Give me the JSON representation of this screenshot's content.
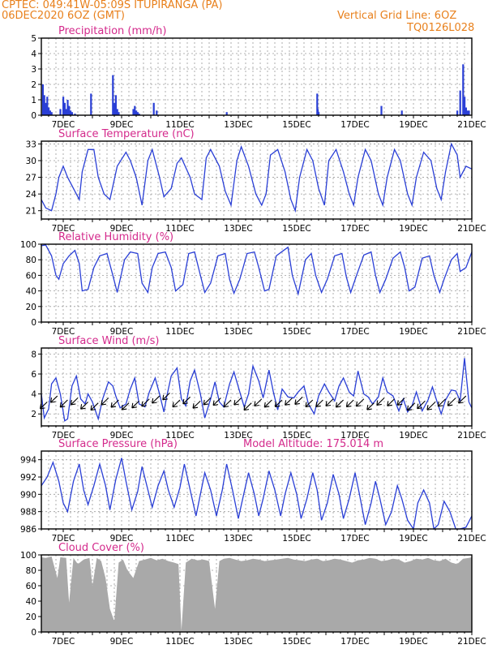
{
  "header": {
    "left_line1": "CPTEC:   049:41W-05:09S   ITUPIRANGA (PA)",
    "left_line2": "06DEC2020 6OZ (GMT)",
    "right_line1": "Vertical Grid Line: 6OZ",
    "right_line2": "TQ0126L028"
  },
  "colors": {
    "header_text": "#e8801c",
    "panel_title": "#d42a8c",
    "series_line": "#2a3fd6",
    "bar_fill": "#2a3fd6",
    "cloud_fill": "#a9a9a9",
    "wind_arrow": "#000000"
  },
  "chart_data": [
    {
      "type": "bar",
      "title": "Precipitation (mm/h)",
      "ylim": [
        0,
        5
      ],
      "yticks": [
        0,
        1,
        2,
        3,
        4,
        5
      ],
      "xlim": [
        6.25,
        21
      ],
      "xticks": [
        7,
        9,
        11,
        13,
        15,
        17,
        19,
        21
      ],
      "xtick_labels": [
        "7DEC",
        "9DEC",
        "11DEC",
        "13DEC",
        "15DEC",
        "17DEC",
        "19DEC",
        "21DEC"
      ],
      "x": [
        6.3,
        6.35,
        6.4,
        6.45,
        6.5,
        6.55,
        6.6,
        6.9,
        7.0,
        7.05,
        7.1,
        7.15,
        7.2,
        7.25,
        7.3,
        7.4,
        7.95,
        8.7,
        8.75,
        8.8,
        8.85,
        8.9,
        9.4,
        9.45,
        9.5,
        9.55,
        9.6,
        10.1,
        10.2,
        12.6,
        15.7,
        15.72,
        15.75,
        17.9,
        18.6,
        20.5,
        20.6,
        20.7,
        20.75,
        20.8,
        20.85,
        20.9
      ],
      "values": [
        2.0,
        1.3,
        0.8,
        1.2,
        0.5,
        0.3,
        0.2,
        0.4,
        1.2,
        0.8,
        0.4,
        1.0,
        0.6,
        0.3,
        0.2,
        0.1,
        1.4,
        2.6,
        0.8,
        1.3,
        0.4,
        0.2,
        0.4,
        0.6,
        0.3,
        0.2,
        0.1,
        0.8,
        0.3,
        0.2,
        1.4,
        0.4,
        0.2,
        0.6,
        0.3,
        0.3,
        1.6,
        3.3,
        1.2,
        0.5,
        0.3,
        0.3
      ]
    },
    {
      "type": "line",
      "title": "Surface Temperature (nC)",
      "ylim": [
        19.5,
        33.5
      ],
      "yticks": [
        21,
        24,
        27,
        30,
        33
      ],
      "xlim": [
        6.25,
        21
      ],
      "xticks": [
        7,
        9,
        11,
        13,
        15,
        17,
        19,
        21
      ],
      "xtick_labels": [
        "7DEC",
        "9DEC",
        "11DEC",
        "13DEC",
        "15DEC",
        "17DEC",
        "19DEC",
        "21DEC"
      ],
      "x": [
        6.25,
        6.4,
        6.6,
        6.75,
        6.85,
        7.0,
        7.15,
        7.35,
        7.55,
        7.65,
        7.85,
        8.05,
        8.2,
        8.4,
        8.6,
        8.85,
        9.15,
        9.3,
        9.5,
        9.7,
        9.9,
        10.05,
        10.3,
        10.45,
        10.7,
        10.9,
        11.05,
        11.35,
        11.5,
        11.75,
        11.9,
        12.05,
        12.35,
        12.55,
        12.75,
        12.95,
        13.1,
        13.35,
        13.6,
        13.8,
        13.95,
        14.1,
        14.35,
        14.6,
        14.8,
        14.95,
        15.1,
        15.35,
        15.55,
        15.75,
        15.95,
        16.1,
        16.35,
        16.6,
        16.8,
        16.95,
        17.1,
        17.35,
        17.55,
        17.8,
        17.95,
        18.1,
        18.35,
        18.55,
        18.8,
        18.95,
        19.1,
        19.35,
        19.6,
        19.8,
        19.95,
        20.1,
        20.3,
        20.5,
        20.6,
        20.8,
        21.0
      ],
      "values": [
        23,
        21.5,
        21,
        24,
        27,
        29,
        27,
        25,
        23,
        28,
        32,
        32,
        27,
        24,
        23,
        29,
        31.5,
        30,
        27,
        22,
        30,
        32,
        27,
        23.5,
        25,
        29.5,
        30.5,
        27,
        24,
        23,
        30.5,
        32,
        29,
        24.5,
        22,
        30,
        32.5,
        29,
        24,
        22,
        24,
        31,
        32,
        28,
        23,
        21,
        27,
        32,
        30,
        25,
        22,
        30,
        32,
        28,
        24,
        22,
        27,
        32,
        30,
        24,
        22,
        27,
        32,
        30,
        24,
        22,
        27,
        31.5,
        30,
        25,
        23,
        28,
        33,
        31,
        27,
        29,
        28.5
      ]
    },
    {
      "type": "line",
      "title": "Relative Humidity (%)",
      "ylim": [
        0,
        100
      ],
      "yticks": [
        0,
        20,
        40,
        60,
        80,
        100
      ],
      "xlim": [
        6.25,
        21
      ],
      "xticks": [
        7,
        9,
        11,
        13,
        15,
        17,
        19,
        21
      ],
      "xtick_labels": [
        "7DEC",
        "9DEC",
        "11DEC",
        "13DEC",
        "15DEC",
        "17DEC",
        "19DEC",
        "21DEC"
      ],
      "x": [
        6.25,
        6.4,
        6.6,
        6.75,
        6.85,
        7.0,
        7.2,
        7.4,
        7.55,
        7.65,
        7.85,
        8.05,
        8.25,
        8.5,
        8.7,
        8.85,
        9.1,
        9.3,
        9.55,
        9.7,
        9.9,
        10.05,
        10.25,
        10.5,
        10.7,
        10.85,
        11.1,
        11.3,
        11.5,
        11.7,
        11.85,
        12.05,
        12.3,
        12.55,
        12.7,
        12.85,
        13.05,
        13.3,
        13.55,
        13.7,
        13.9,
        14.05,
        14.3,
        14.55,
        14.7,
        14.85,
        15.05,
        15.3,
        15.5,
        15.65,
        15.85,
        16.05,
        16.3,
        16.55,
        16.7,
        16.85,
        17.05,
        17.3,
        17.55,
        17.7,
        17.85,
        18.05,
        18.3,
        18.55,
        18.7,
        18.85,
        19.05,
        19.3,
        19.55,
        19.7,
        19.9,
        20.05,
        20.3,
        20.5,
        20.6,
        20.8,
        21.0
      ],
      "values": [
        98,
        99,
        85,
        60,
        55,
        75,
        85,
        92,
        75,
        40,
        42,
        70,
        85,
        88,
        60,
        38,
        80,
        90,
        88,
        50,
        38,
        70,
        88,
        90,
        70,
        40,
        48,
        88,
        90,
        60,
        38,
        50,
        85,
        88,
        55,
        37,
        55,
        88,
        90,
        70,
        40,
        42,
        85,
        92,
        96,
        60,
        36,
        80,
        88,
        60,
        38,
        55,
        85,
        88,
        58,
        38,
        60,
        86,
        90,
        60,
        38,
        55,
        82,
        90,
        70,
        40,
        45,
        82,
        85,
        60,
        38,
        55,
        80,
        88,
        65,
        70,
        90
      ]
    },
    {
      "type": "line",
      "title": "Surface Wind (m/s)",
      "ylim": [
        0.8,
        8.6
      ],
      "yticks": [
        2,
        4,
        6,
        8
      ],
      "xlim": [
        6.25,
        21
      ],
      "xticks": [
        7,
        9,
        11,
        13,
        15,
        17,
        19,
        21
      ],
      "xtick_labels": [
        "7DEC",
        "9DEC",
        "11DEC",
        "13DEC",
        "15DEC",
        "17DEC",
        "19DEC",
        "21DEC"
      ],
      "x": [
        6.25,
        6.35,
        6.5,
        6.6,
        6.75,
        6.9,
        7.05,
        7.15,
        7.3,
        7.45,
        7.6,
        7.75,
        7.85,
        8.0,
        8.2,
        8.35,
        8.55,
        8.7,
        8.8,
        8.95,
        9.15,
        9.3,
        9.45,
        9.6,
        9.8,
        9.95,
        10.15,
        10.3,
        10.45,
        10.55,
        10.7,
        10.9,
        11.05,
        11.2,
        11.35,
        11.5,
        11.7,
        11.85,
        12.05,
        12.2,
        12.35,
        12.5,
        12.7,
        12.85,
        13.05,
        13.2,
        13.35,
        13.5,
        13.7,
        13.85,
        14.05,
        14.2,
        14.35,
        14.5,
        14.7,
        14.9,
        15.05,
        15.25,
        15.4,
        15.6,
        15.75,
        15.95,
        16.1,
        16.3,
        16.45,
        16.6,
        16.8,
        16.95,
        17.1,
        17.3,
        17.45,
        17.6,
        17.8,
        17.95,
        18.1,
        18.3,
        18.5,
        18.65,
        18.8,
        18.95,
        19.1,
        19.3,
        19.5,
        19.65,
        19.8,
        19.95,
        20.1,
        20.3,
        20.45,
        20.6,
        20.75,
        20.9,
        21.0
      ],
      "values": [
        4,
        1.6,
        2.5,
        5,
        5.6,
        4,
        1.3,
        1.5,
        4.8,
        5.8,
        3.5,
        3,
        4,
        3.2,
        1.5,
        3.5,
        5.2,
        4.8,
        3.8,
        2.6,
        3,
        4.5,
        5.6,
        3,
        2.7,
        4.2,
        5.6,
        4,
        2.2,
        3.8,
        5.8,
        6.6,
        3.5,
        2.8,
        5.3,
        6.4,
        4,
        1.6,
        3.5,
        5.2,
        3.2,
        2.7,
        5,
        6.2,
        4.2,
        2.7,
        4,
        6.8,
        5.3,
        3.6,
        6.4,
        4.2,
        2.4,
        4.5,
        3.7,
        3.6,
        4.2,
        4.8,
        3,
        2,
        3.8,
        5,
        4.2,
        3.3,
        4.8,
        5.6,
        4.2,
        3.8,
        6.3,
        4,
        3.7,
        3,
        3.7,
        5.6,
        4.2,
        3.8,
        2.3,
        3.5,
        2.2,
        2.8,
        4.2,
        2.3,
        3.4,
        4.7,
        3.3,
        2,
        3.4,
        4.4,
        4.3,
        3.3,
        7.6,
        3.2,
        2.6
      ],
      "arrows_x": [
        6.45,
        6.8,
        7.15,
        7.5,
        7.85,
        8.2,
        8.55,
        8.9,
        9.25,
        9.6,
        9.95,
        10.3,
        10.65,
        11.0,
        11.35,
        11.7,
        12.05,
        12.4,
        12.75,
        13.1,
        13.45,
        13.8,
        14.15,
        14.5,
        14.85,
        15.2,
        15.55,
        15.9,
        16.25,
        16.6,
        16.95,
        17.3,
        17.65,
        18.0,
        18.35,
        18.7,
        19.05,
        19.4,
        19.75,
        20.1,
        20.45,
        20.8
      ],
      "arrows_y": [
        3.2,
        3.8,
        3.4,
        3.6,
        3.2,
        3.1,
        3.6,
        3.4,
        3.1,
        3.3,
        3.5,
        3.8,
        4.1,
        3.4,
        3.7,
        3.3,
        3.6,
        3.6,
        3.4,
        3.6,
        3.1,
        3.5,
        3.4,
        3.4,
        3.6,
        3.7,
        3.4,
        3.4,
        3.5,
        3.4,
        3.4,
        3.5,
        3.1,
        3.6,
        3.5,
        3.6,
        3.1,
        3.3,
        3.2,
        3.5,
        3.6,
        3.8
      ],
      "arrows_speed": [
        3.2,
        3.0,
        3.5,
        3.2,
        3.4,
        3.5,
        3.3,
        3.6,
        3.2,
        3.3,
        3.6,
        3.5,
        3.2,
        3.4,
        3.3,
        3.5,
        3.2,
        3.6,
        3.4,
        3.3,
        3.5,
        3.4,
        3.5,
        3.2,
        3.4,
        3.6,
        3.3,
        3.2,
        3.4,
        3.5,
        3.3,
        3.6,
        3.2,
        3.5,
        3.3,
        3.4,
        3.6,
        3.8,
        4.0,
        3.6,
        3.9,
        3.5
      ]
    },
    {
      "type": "line",
      "title": "Surface Pressure (hPa)",
      "annotation": "Model Altitude: 175.014 m",
      "ylim": [
        986,
        995
      ],
      "yticks": [
        986,
        988,
        990,
        992,
        994
      ],
      "xlim": [
        6.25,
        21
      ],
      "xticks": [
        7,
        9,
        11,
        13,
        15,
        17,
        19,
        21
      ],
      "xtick_labels": [
        "7DEC",
        "9DEC",
        "11DEC",
        "13DEC",
        "15DEC",
        "17DEC",
        "19DEC",
        "21DEC"
      ],
      "x": [
        6.25,
        6.45,
        6.65,
        6.85,
        7.0,
        7.15,
        7.35,
        7.55,
        7.7,
        7.85,
        8.05,
        8.25,
        8.45,
        8.6,
        8.8,
        9.0,
        9.15,
        9.35,
        9.55,
        9.7,
        9.85,
        10.05,
        10.25,
        10.45,
        10.6,
        10.8,
        11.0,
        11.15,
        11.35,
        11.55,
        11.7,
        11.85,
        12.05,
        12.25,
        12.45,
        12.6,
        12.8,
        13.0,
        13.15,
        13.35,
        13.55,
        13.7,
        13.85,
        14.05,
        14.25,
        14.45,
        14.6,
        14.8,
        15.0,
        15.15,
        15.35,
        15.55,
        15.7,
        15.85,
        16.05,
        16.25,
        16.45,
        16.6,
        16.8,
        17.0,
        17.15,
        17.35,
        17.55,
        17.7,
        17.85,
        18.05,
        18.25,
        18.45,
        18.6,
        18.8,
        19.0,
        19.15,
        19.35,
        19.55,
        19.7,
        19.85,
        20.05,
        20.25,
        20.45,
        20.6,
        20.8,
        21.0
      ],
      "values": [
        991,
        992,
        993.7,
        991.5,
        989,
        988,
        991.5,
        993.5,
        990.5,
        988.8,
        991,
        993.5,
        991,
        988.2,
        991.7,
        994.2,
        991.5,
        988.2,
        990.3,
        993.2,
        991.2,
        988.5,
        991,
        992.7,
        990.5,
        988.5,
        990.8,
        993.5,
        990.5,
        987.5,
        990,
        992.5,
        990.5,
        987.5,
        990.5,
        993.5,
        990.5,
        987.2,
        989.5,
        992.5,
        990,
        987.5,
        989.5,
        992.7,
        990.5,
        987.5,
        990,
        992.5,
        990,
        987.2,
        989.5,
        992.5,
        990.5,
        987,
        989,
        992.3,
        990,
        987.2,
        989.5,
        992.5,
        990,
        986.5,
        989,
        991.5,
        989.5,
        986.5,
        988,
        991,
        989.5,
        987,
        986,
        989,
        990.5,
        989,
        985.8,
        986.5,
        989.2,
        988,
        985.5,
        986,
        986.2,
        987.5
      ]
    },
    {
      "type": "area",
      "title": "Cloud Cover (%)",
      "ylim": [
        0,
        100
      ],
      "yticks": [
        0,
        20,
        40,
        60,
        80,
        100
      ],
      "xlim": [
        6.25,
        21
      ],
      "xticks": [
        7,
        9,
        11,
        13,
        15,
        17,
        19,
        21
      ],
      "xtick_labels": [
        "7DEC",
        "9DEC",
        "11DEC",
        "13DEC",
        "15DEC",
        "17DEC",
        "19DEC",
        "21DEC"
      ],
      "x": [
        6.25,
        6.4,
        6.6,
        6.8,
        6.9,
        7.1,
        7.2,
        7.35,
        7.5,
        7.7,
        7.9,
        8.0,
        8.15,
        8.3,
        8.45,
        8.6,
        8.75,
        8.9,
        9.05,
        9.2,
        9.4,
        9.6,
        9.8,
        10.0,
        10.2,
        10.4,
        10.6,
        10.8,
        10.95,
        11.05,
        11.2,
        11.4,
        11.6,
        11.8,
        12.0,
        12.2,
        12.35,
        12.5,
        12.7,
        12.9,
        13.1,
        13.3,
        13.5,
        13.7,
        13.9,
        14.1,
        14.3,
        14.5,
        14.7,
        14.9,
        15.1,
        15.3,
        15.5,
        15.7,
        15.9,
        16.1,
        16.3,
        16.5,
        16.7,
        16.9,
        17.1,
        17.3,
        17.5,
        17.7,
        17.9,
        18.1,
        18.3,
        18.5,
        18.7,
        18.9,
        19.1,
        19.3,
        19.5,
        19.7,
        19.9,
        20.1,
        20.3,
        20.5,
        20.7,
        20.9,
        21.0
      ],
      "values": [
        97,
        96,
        98,
        70,
        97,
        96,
        38,
        96,
        88,
        94,
        96,
        60,
        96,
        92,
        70,
        30,
        14,
        90,
        94,
        80,
        70,
        92,
        94,
        96,
        93,
        95,
        92,
        90,
        88,
        2,
        90,
        95,
        93,
        94,
        92,
        30,
        92,
        95,
        96,
        94,
        92,
        93,
        95,
        94,
        92,
        93,
        94,
        95,
        96,
        94,
        93,
        92,
        94,
        95,
        92,
        93,
        95,
        94,
        92,
        90,
        93,
        94,
        96,
        95,
        92,
        93,
        95,
        94,
        90,
        92,
        95,
        94,
        96,
        93,
        92,
        95,
        90,
        88,
        95,
        96,
        97
      ]
    }
  ]
}
